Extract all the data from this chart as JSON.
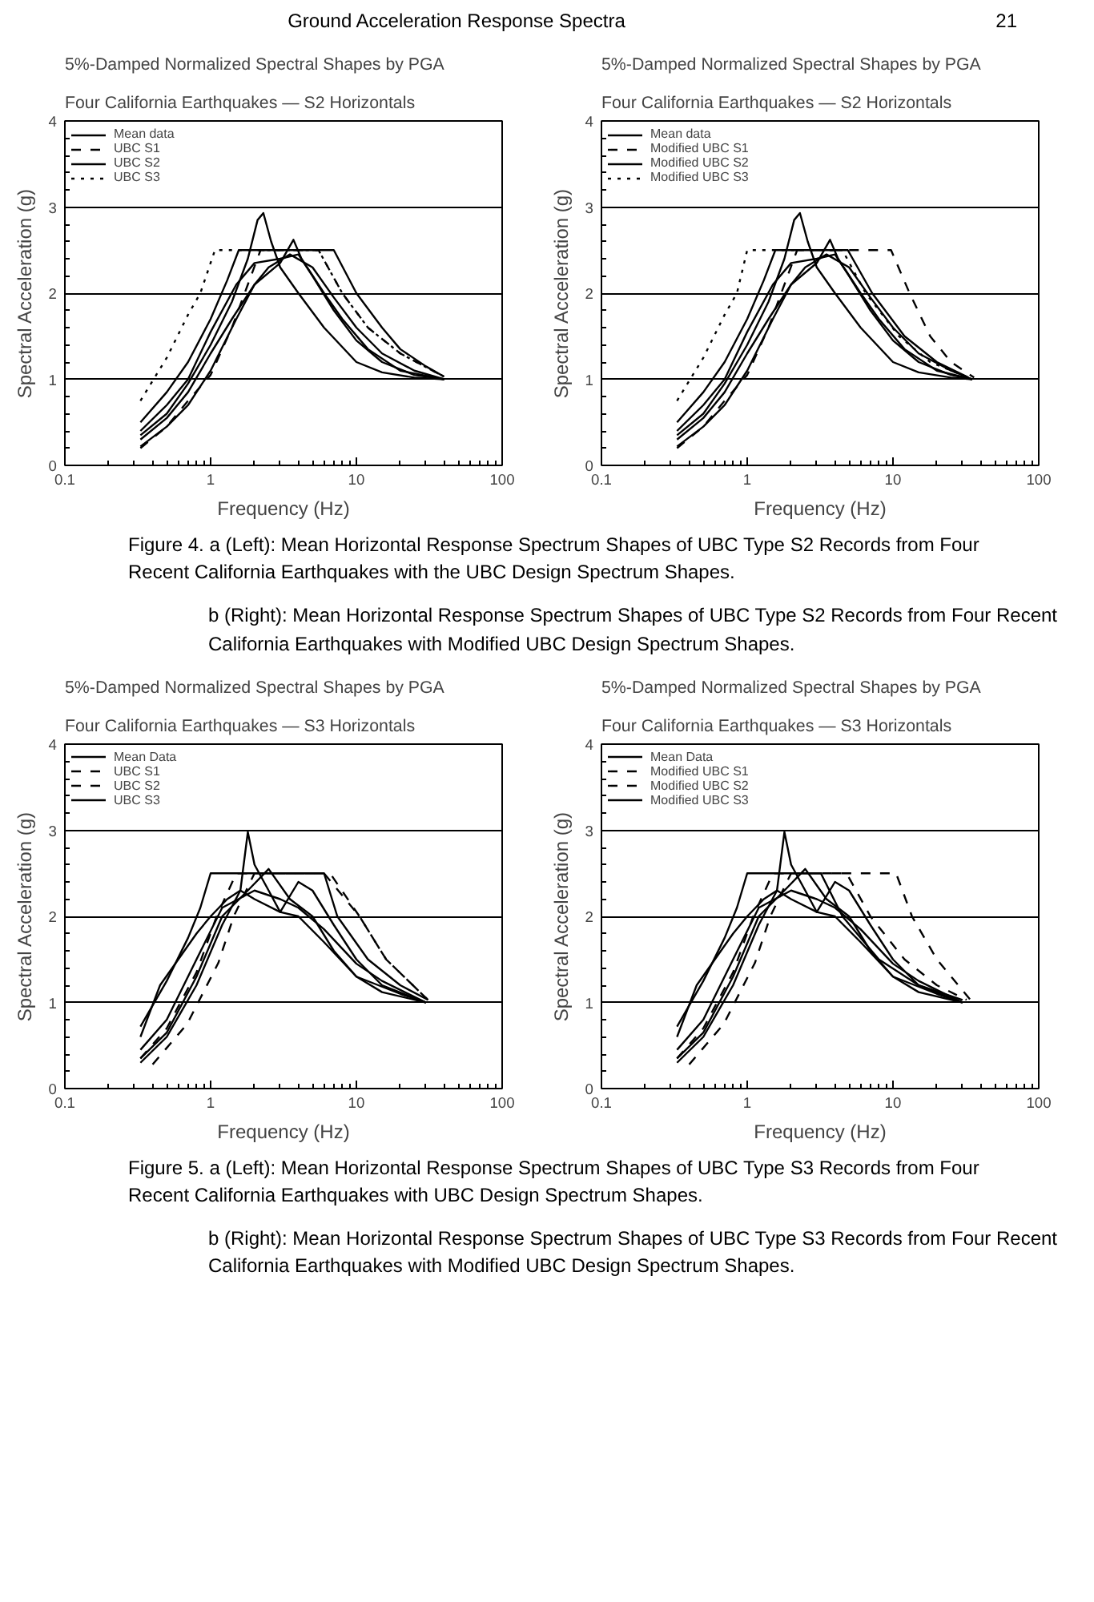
{
  "chart_data": [
    {
      "type": "line",
      "title": "5%-Damped Normalized Spectral Shapes by PGA",
      "subtitle": "Four California Earthquakes — S2 Horizontals",
      "xlabel": "Frequency (Hz)",
      "ylabel": "Spectral Acceleration (g)",
      "log": "x",
      "xlim": [
        0.1,
        100
      ],
      "ylim": [
        0,
        4
      ],
      "xticks": [
        0.1,
        1,
        10,
        100
      ],
      "yticks": [
        0,
        1,
        2,
        3,
        4
      ],
      "grid": "y",
      "legend": "top left",
      "annotations": [
        "Ground Acceleration Response Spectra",
        "Figure 4. a (Left): Mean Horizontal Response Spectrum Shapes of UBC Type S2 Records from Four Recent California Earthquakes with the UBC Design Spectrum Shapes."
      ],
      "series": [
        {
          "name": "Mean data",
          "color": "#000000",
          "line_style": "solid",
          "x": [
            0.33,
            0.5,
            0.7,
            1.0,
            1.4,
            1.8,
            2.1,
            2.3,
            2.6,
            3.0,
            4,
            6,
            10,
            15,
            25,
            40
          ],
          "values": [
            0.35,
            0.6,
            0.95,
            1.4,
            1.9,
            2.4,
            2.85,
            2.93,
            2.6,
            2.3,
            2.0,
            1.6,
            1.2,
            1.08,
            1.02,
            1.0
          ]
        },
        {
          "color": "#000000",
          "line_style": "solid",
          "x": [
            0.33,
            0.5,
            0.7,
            1.0,
            1.4,
            2,
            3,
            3.7,
            4.2,
            6,
            8,
            12,
            20,
            40
          ],
          "values": [
            0.3,
            0.55,
            0.85,
            1.3,
            1.7,
            2.1,
            2.35,
            2.62,
            2.4,
            2.0,
            1.7,
            1.35,
            1.1,
            1.0
          ]
        },
        {
          "color": "#000000",
          "line_style": "solid",
          "x": [
            0.33,
            0.5,
            0.7,
            1.0,
            1.5,
            2,
            2.5,
            3.5,
            5,
            7,
            10,
            15,
            25,
            40
          ],
          "values": [
            0.22,
            0.45,
            0.7,
            1.1,
            1.7,
            2.1,
            2.3,
            2.45,
            2.3,
            1.95,
            1.6,
            1.3,
            1.1,
            1.0
          ]
        },
        {
          "color": "#000000",
          "line_style": "solid",
          "x": [
            0.33,
            0.5,
            0.7,
            1.0,
            1.5,
            2,
            3,
            4,
            5,
            7,
            10,
            15,
            25,
            40
          ],
          "values": [
            0.4,
            0.7,
            1.0,
            1.55,
            2.1,
            2.35,
            2.4,
            2.45,
            2.2,
            1.8,
            1.45,
            1.2,
            1.05,
            1.0
          ]
        },
        {
          "name": "UBC S1",
          "color": "#000000",
          "line_style": "dashed",
          "x": [
            0.33,
            0.5,
            0.7,
            1.0,
            1.4,
            1.8,
            2.2,
            5.5,
            8,
            12,
            20,
            40
          ],
          "values": [
            0.2,
            0.45,
            0.75,
            1.05,
            1.6,
            2.1,
            2.5,
            2.5,
            2.0,
            1.6,
            1.3,
            1.03
          ]
        },
        {
          "name": "UBC S2",
          "color": "#000000",
          "line_style": "solid",
          "x": [
            0.33,
            0.5,
            0.7,
            1.0,
            1.3,
            1.56,
            7.0,
            10,
            15,
            20,
            30,
            40
          ],
          "values": [
            0.5,
            0.85,
            1.2,
            1.7,
            2.15,
            2.5,
            2.5,
            2.0,
            1.6,
            1.35,
            1.15,
            1.03
          ]
        },
        {
          "name": "UBC S3",
          "color": "#000000",
          "line_style": "dotted",
          "x": [
            0.33,
            0.5,
            0.7,
            0.85,
            1.07,
            5.5,
            8,
            12,
            20,
            40
          ],
          "values": [
            0.75,
            1.25,
            1.75,
            2.0,
            2.5,
            2.5,
            2.0,
            1.6,
            1.3,
            1.03
          ]
        }
      ]
    },
    {
      "type": "line",
      "title": "5%-Damped Normalized Spectral Shapes by PGA",
      "subtitle": "Four California Earthquakes — S2 Horizontals",
      "xlabel": "Frequency (Hz)",
      "ylabel": "Spectral Acceleration (g)",
      "log": "x",
      "xlim": [
        0.1,
        100
      ],
      "ylim": [
        0,
        4
      ],
      "xticks": [
        0.1,
        1,
        10,
        100
      ],
      "yticks": [
        0,
        1,
        2,
        3,
        4
      ],
      "grid": "y",
      "legend": "top left",
      "annotations": [
        "21",
        "b (Right): Mean Horizontal Response Spectrum Shapes of UBC Type S2 Records from Four Recent California Earthquakes with Modified UBC Design Spectrum Shapes."
      ],
      "series": [
        {
          "name": "Mean data",
          "color": "#000000",
          "line_style": "solid",
          "x": [
            0.33,
            0.5,
            0.7,
            1.0,
            1.4,
            1.8,
            2.1,
            2.3,
            2.6,
            3.0,
            4,
            6,
            10,
            15,
            25,
            35
          ],
          "values": [
            0.35,
            0.6,
            0.95,
            1.4,
            1.9,
            2.4,
            2.85,
            2.93,
            2.6,
            2.3,
            2.0,
            1.6,
            1.2,
            1.08,
            1.02,
            1.0
          ]
        },
        {
          "color": "#000000",
          "line_style": "solid",
          "x": [
            0.33,
            0.5,
            0.7,
            1.0,
            1.4,
            2,
            3,
            3.7,
            4.2,
            6,
            8,
            12,
            20,
            35
          ],
          "values": [
            0.3,
            0.55,
            0.85,
            1.3,
            1.7,
            2.1,
            2.35,
            2.62,
            2.4,
            2.0,
            1.7,
            1.35,
            1.1,
            1.0
          ]
        },
        {
          "color": "#000000",
          "line_style": "solid",
          "x": [
            0.33,
            0.5,
            0.7,
            1.0,
            1.5,
            2,
            2.5,
            3.5,
            5,
            7,
            10,
            15,
            25,
            35
          ],
          "values": [
            0.22,
            0.45,
            0.7,
            1.1,
            1.7,
            2.1,
            2.3,
            2.45,
            2.3,
            1.95,
            1.6,
            1.3,
            1.1,
            1.0
          ]
        },
        {
          "color": "#000000",
          "line_style": "solid",
          "x": [
            0.33,
            0.5,
            0.7,
            1.0,
            1.5,
            2,
            3,
            4,
            5,
            7,
            10,
            15,
            25,
            35
          ],
          "values": [
            0.4,
            0.7,
            1.0,
            1.55,
            2.1,
            2.35,
            2.4,
            2.45,
            2.2,
            1.8,
            1.45,
            1.2,
            1.05,
            1.0
          ]
        },
        {
          "name": "Modified UBC S1",
          "color": "#000000",
          "line_style": "dashed",
          "x": [
            0.33,
            0.5,
            0.7,
            1.0,
            1.4,
            1.8,
            2.2,
            9.7,
            13,
            18,
            25,
            36
          ],
          "values": [
            0.2,
            0.45,
            0.75,
            1.05,
            1.6,
            2.1,
            2.5,
            2.5,
            2.0,
            1.5,
            1.2,
            1.02
          ]
        },
        {
          "name": "Modified UBC S2",
          "color": "#000000",
          "line_style": "solid",
          "x": [
            0.33,
            0.5,
            0.7,
            1.0,
            1.3,
            1.56,
            4.9,
            7.2,
            12,
            20,
            33
          ],
          "values": [
            0.5,
            0.85,
            1.2,
            1.7,
            2.15,
            2.5,
            2.5,
            2.0,
            1.5,
            1.2,
            1.02
          ]
        },
        {
          "name": "Modified UBC S3",
          "color": "#000000",
          "line_style": "dotted",
          "x": [
            0.33,
            0.5,
            0.7,
            0.85,
            1.0,
            4.5,
            6.5,
            11,
            18,
            33
          ],
          "values": [
            0.75,
            1.25,
            1.75,
            2.0,
            2.5,
            2.5,
            2.0,
            1.5,
            1.2,
            1.02
          ]
        }
      ]
    },
    {
      "type": "line",
      "title": "5%-Damped Normalized Spectral Shapes by PGA",
      "subtitle": "Four California Earthquakes — S3 Horizontals",
      "xlabel": "Frequency (Hz)",
      "ylabel": "Spectral Acceleration (g)",
      "log": "x",
      "xlim": [
        0.1,
        100
      ],
      "ylim": [
        0,
        4
      ],
      "xticks": [
        0.1,
        1,
        10,
        100
      ],
      "yticks": [
        0,
        1,
        2,
        3,
        4
      ],
      "grid": "y",
      "legend": "top left",
      "annotations": [
        "Figure 5. a (Left): Mean Horizontal Response Spectrum Shapes of UBC Type S3 Records from Four Recent California Earthquakes with UBC Design Spectrum Shapes."
      ],
      "series": [
        {
          "name": "Mean Data",
          "color": "#000000",
          "line_style": "solid",
          "x": [
            0.33,
            0.45,
            0.6,
            0.8,
            1.0,
            1.3,
            1.6,
            2.0,
            3,
            4,
            5,
            7,
            10,
            15,
            25,
            30
          ],
          "values": [
            0.6,
            1.2,
            1.5,
            1.8,
            2.0,
            2.2,
            2.3,
            2.2,
            2.05,
            2.4,
            2.3,
            1.9,
            1.5,
            1.2,
            1.05,
            1.0
          ]
        },
        {
          "color": "#000000",
          "line_style": "solid",
          "x": [
            0.33,
            0.5,
            0.8,
            1.2,
            1.6,
            1.8,
            2.0,
            2.5,
            3,
            4,
            6,
            10,
            15,
            30
          ],
          "values": [
            0.3,
            0.6,
            1.2,
            1.9,
            2.3,
            2.98,
            2.6,
            2.3,
            2.05,
            2.0,
            1.7,
            1.3,
            1.12,
            1.0
          ]
        },
        {
          "color": "#000000",
          "line_style": "solid",
          "x": [
            0.33,
            0.5,
            0.8,
            1.2,
            1.8,
            2.5,
            3.5,
            5,
            7,
            10,
            20,
            30
          ],
          "values": [
            0.35,
            0.65,
            1.3,
            2.0,
            2.3,
            2.55,
            2.2,
            2.0,
            1.6,
            1.3,
            1.1,
            1.0
          ]
        },
        {
          "color": "#000000",
          "line_style": "solid",
          "x": [
            0.33,
            0.5,
            0.8,
            1.2,
            2,
            3,
            4,
            6,
            10,
            15,
            30
          ],
          "values": [
            0.45,
            0.8,
            1.5,
            2.1,
            2.3,
            2.2,
            2.1,
            1.85,
            1.45,
            1.25,
            1.0
          ]
        },
        {
          "name": "UBC S1",
          "color": "#000000",
          "line_style": "dashed",
          "x": [
            0.4,
            0.69,
            1.13,
            1.44,
            2.0,
            6.0,
            10.5,
            16,
            31
          ],
          "values": [
            0.28,
            0.75,
            1.46,
            2.0,
            2.5,
            2.5,
            2.0,
            1.5,
            1.03
          ]
        },
        {
          "name": "UBC S2",
          "color": "#000000",
          "line_style": "dashed",
          "x": [
            0.33,
            0.5,
            0.8,
            1.1,
            1.5,
            6.6,
            10.5,
            16,
            31
          ],
          "values": [
            0.35,
            0.7,
            1.35,
            2.0,
            2.5,
            2.5,
            2.0,
            1.5,
            1.03
          ]
        },
        {
          "name": "UBC S3",
          "color": "#000000",
          "line_style": "solid",
          "x": [
            0.33,
            0.5,
            0.7,
            0.85,
            1.0,
            6.0,
            7.4,
            12,
            20,
            31
          ],
          "values": [
            0.72,
            1.25,
            1.75,
            2.1,
            2.5,
            2.5,
            2.0,
            1.5,
            1.2,
            1.03
          ]
        }
      ]
    },
    {
      "type": "line",
      "title": "5%-Damped Normalized Spectral Shapes by PGA",
      "subtitle": "Four California Earthquakes — S3 Horizontals",
      "xlabel": "Frequency (Hz)",
      "ylabel": "Spectral Acceleration (g)",
      "log": "x",
      "xlim": [
        0.1,
        100
      ],
      "ylim": [
        0,
        4
      ],
      "xticks": [
        0.1,
        1,
        10,
        100
      ],
      "yticks": [
        0,
        1,
        2,
        3,
        4
      ],
      "grid": "y",
      "legend": "top left",
      "annotations": [
        "b (Right): Mean Horizontal Response Spectrum Shapes of UBC Type S3 Records from Four Recent California Earthquakes with Modified UBC Design Spectrum Shapes."
      ],
      "series": [
        {
          "name": "Mean Data",
          "color": "#000000",
          "line_style": "solid",
          "x": [
            0.33,
            0.45,
            0.6,
            0.8,
            1.0,
            1.3,
            1.6,
            2.0,
            3,
            4,
            5,
            7,
            10,
            15,
            25,
            30
          ],
          "values": [
            0.6,
            1.2,
            1.5,
            1.8,
            2.0,
            2.2,
            2.3,
            2.2,
            2.05,
            2.4,
            2.3,
            1.9,
            1.5,
            1.2,
            1.05,
            1.0
          ]
        },
        {
          "color": "#000000",
          "line_style": "solid",
          "x": [
            0.33,
            0.5,
            0.8,
            1.2,
            1.6,
            1.8,
            2.0,
            2.5,
            3,
            4,
            6,
            10,
            15,
            30
          ],
          "values": [
            0.3,
            0.6,
            1.2,
            1.9,
            2.3,
            2.98,
            2.6,
            2.3,
            2.05,
            2.0,
            1.7,
            1.3,
            1.12,
            1.0
          ]
        },
        {
          "color": "#000000",
          "line_style": "solid",
          "x": [
            0.33,
            0.5,
            0.8,
            1.2,
            1.8,
            2.5,
            3.5,
            5,
            7,
            10,
            20,
            30
          ],
          "values": [
            0.35,
            0.65,
            1.3,
            2.0,
            2.3,
            2.55,
            2.2,
            2.0,
            1.6,
            1.3,
            1.1,
            1.0
          ]
        },
        {
          "color": "#000000",
          "line_style": "solid",
          "x": [
            0.33,
            0.5,
            0.8,
            1.2,
            2,
            3,
            4,
            6,
            10,
            15,
            30
          ],
          "values": [
            0.45,
            0.8,
            1.5,
            2.1,
            2.3,
            2.2,
            2.1,
            1.85,
            1.45,
            1.25,
            1.0
          ]
        },
        {
          "name": "Modified UBC S1",
          "color": "#000000",
          "line_style": "dashed",
          "x": [
            0.4,
            0.69,
            1.13,
            1.44,
            2.0,
            10.5,
            13.5,
            20,
            34
          ],
          "values": [
            0.28,
            0.75,
            1.46,
            2.0,
            2.5,
            2.5,
            2.0,
            1.5,
            1.03
          ]
        },
        {
          "name": "Modified UBC S2",
          "color": "#000000",
          "line_style": "dashed",
          "x": [
            0.33,
            0.5,
            0.8,
            1.1,
            1.5,
            4.8,
            7.0,
            12,
            20,
            32
          ],
          "values": [
            0.35,
            0.7,
            1.35,
            2.0,
            2.5,
            2.5,
            2.0,
            1.5,
            1.2,
            1.03
          ]
        },
        {
          "name": "Modified UBC S3",
          "color": "#000000",
          "line_style": "solid",
          "x": [
            0.33,
            0.5,
            0.7,
            0.85,
            1.0,
            3.2,
            4.5,
            8,
            15,
            30
          ],
          "values": [
            0.72,
            1.25,
            1.75,
            2.1,
            2.5,
            2.5,
            2.0,
            1.5,
            1.2,
            1.03
          ]
        }
      ]
    }
  ]
}
